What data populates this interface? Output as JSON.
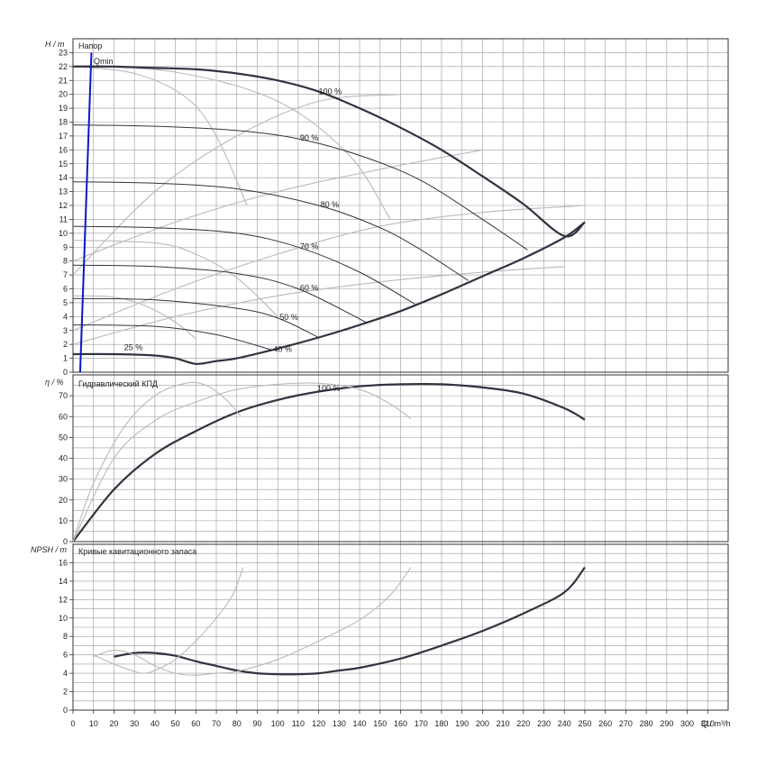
{
  "chart_data": [
    {
      "type": "line",
      "panel": "head",
      "title": "Напор",
      "ylabel": "H / m",
      "xlabel": "Q / m³/h",
      "xlim": [
        0,
        320
      ],
      "ylim": [
        0,
        24
      ],
      "yticks": [
        0,
        1,
        2,
        3,
        4,
        5,
        6,
        7,
        8,
        9,
        10,
        11,
        12,
        13,
        14,
        15,
        16,
        17,
        18,
        19,
        20,
        21,
        22,
        23
      ],
      "grid": true,
      "qmin_label": "Qmin",
      "qmin_line": {
        "x": [
          3.5,
          9
        ],
        "y": [
          0,
          23
        ]
      },
      "max_curve": {
        "name": "100 %",
        "x": [
          0,
          20,
          40,
          60,
          80,
          100,
          120,
          140,
          160,
          180,
          200,
          220,
          240,
          250
        ],
        "y": [
          22.0,
          22.0,
          21.9,
          21.8,
          21.5,
          21.0,
          20.2,
          19.0,
          17.6,
          16.0,
          14.1,
          12.1,
          9.8,
          10.8
        ]
      },
      "min_curve": {
        "name": "25 %",
        "x": [
          0,
          20,
          40,
          50,
          60,
          70,
          80,
          100,
          120,
          140,
          160,
          180,
          200,
          220,
          240,
          250
        ],
        "y": [
          1.3,
          1.3,
          1.2,
          1.0,
          0.6,
          0.8,
          1.0,
          1.7,
          2.5,
          3.4,
          4.4,
          5.6,
          6.9,
          8.2,
          9.7,
          10.8
        ]
      },
      "speed_curves": [
        {
          "name": "90 %",
          "x": [
            0,
            40,
            80,
            110,
            140,
            170,
            200,
            222
          ],
          "y": [
            17.8,
            17.7,
            17.4,
            16.8,
            15.6,
            13.8,
            11.0,
            8.8
          ]
        },
        {
          "name": "80 %",
          "x": [
            0,
            40,
            80,
            120,
            150,
            170,
            193
          ],
          "y": [
            13.7,
            13.6,
            13.2,
            12.0,
            10.4,
            8.8,
            6.6
          ]
        },
        {
          "name": "70 %",
          "x": [
            0,
            40,
            80,
            110,
            140,
            167
          ],
          "y": [
            10.5,
            10.4,
            10.0,
            9.0,
            7.2,
            4.9
          ]
        },
        {
          "name": "60 %",
          "x": [
            0,
            40,
            80,
            110,
            143
          ],
          "y": [
            7.7,
            7.6,
            7.1,
            6.0,
            3.6
          ]
        },
        {
          "name": "50 %",
          "x": [
            0,
            40,
            80,
            100,
            120
          ],
          "y": [
            5.3,
            5.2,
            4.6,
            3.9,
            2.5
          ]
        },
        {
          "name": "40 %",
          "x": [
            0,
            40,
            70,
            97
          ],
          "y": [
            3.4,
            3.3,
            2.7,
            1.6
          ]
        }
      ],
      "background_curves": [
        {
          "x": [
            0,
            30,
            55,
            70,
            85
          ],
          "y": [
            22.0,
            21.5,
            19.8,
            17.0,
            12.0
          ]
        },
        {
          "x": [
            0,
            50,
            100,
            135,
            155
          ],
          "y": [
            22.0,
            21.6,
            19.5,
            15.6,
            11.0
          ]
        },
        {
          "x": [
            0,
            40,
            60,
            80,
            100
          ],
          "y": [
            9.5,
            9.3,
            8.5,
            6.8,
            4.0
          ]
        },
        {
          "x": [
            0,
            20,
            35,
            50,
            60
          ],
          "y": [
            5.5,
            5.4,
            4.8,
            3.6,
            2.4
          ]
        },
        {
          "x": [
            0,
            50,
            100,
            150,
            200,
            250
          ],
          "y": [
            3.0,
            6.0,
            8.5,
            10.5,
            11.5,
            12.0
          ]
        },
        {
          "x": [
            0,
            50,
            100,
            150,
            200,
            240
          ],
          "y": [
            2.0,
            4.0,
            5.5,
            6.5,
            7.2,
            7.6
          ]
        },
        {
          "x": [
            0,
            50,
            100,
            150,
            200
          ],
          "y": [
            8.0,
            10.8,
            13.0,
            14.6,
            16.0
          ]
        },
        {
          "x": [
            0,
            40,
            80,
            120,
            160
          ],
          "y": [
            7.0,
            13.0,
            17.0,
            19.5,
            20.0
          ]
        }
      ]
    },
    {
      "type": "line",
      "panel": "efficiency",
      "title": "Гидравлический КПД",
      "ylabel": "η / %",
      "xlim": [
        0,
        320
      ],
      "ylim": [
        0,
        80
      ],
      "yticks": [
        0,
        10,
        20,
        30,
        40,
        50,
        60,
        70
      ],
      "grid": true,
      "series": [
        {
          "name": "100 %",
          "x": [
            0,
            20,
            40,
            60,
            80,
            100,
            120,
            140,
            160,
            180,
            200,
            220,
            240,
            250
          ],
          "y": [
            0,
            25,
            42,
            53,
            62,
            68,
            72,
            74.5,
            75.5,
            75.5,
            74,
            71,
            64,
            58.5
          ]
        },
        {
          "x": [
            0,
            20,
            40,
            60,
            80,
            100,
            120,
            140,
            155,
            165
          ],
          "y": [
            0,
            40,
            58,
            67,
            73,
            75.5,
            76,
            73,
            66,
            59
          ]
        },
        {
          "x": [
            0,
            10,
            25,
            40,
            55,
            65,
            75,
            82
          ],
          "y": [
            0,
            28,
            55,
            70,
            76,
            75,
            68,
            60
          ]
        }
      ]
    },
    {
      "type": "line",
      "panel": "npsh",
      "title": "Кривые кавитационного запаса",
      "ylabel": "NPSH / m",
      "xlim": [
        0,
        320
      ],
      "ylim": [
        0,
        18
      ],
      "yticks": [
        0,
        2,
        4,
        6,
        8,
        10,
        12,
        14,
        16
      ],
      "xticks": [
        0,
        10,
        20,
        30,
        40,
        50,
        60,
        70,
        80,
        90,
        100,
        110,
        120,
        130,
        140,
        150,
        160,
        170,
        180,
        190,
        200,
        210,
        220,
        230,
        240,
        250,
        260,
        270,
        280,
        290,
        300,
        310
      ],
      "grid": true,
      "series": [
        {
          "x": [
            20,
            30,
            40,
            50,
            60,
            70,
            80,
            90,
            100,
            110,
            120,
            130,
            140,
            160,
            180,
            200,
            220,
            240,
            250
          ],
          "y": [
            5.8,
            6.2,
            6.2,
            5.9,
            5.3,
            4.8,
            4.3,
            4.0,
            3.9,
            3.9,
            4.0,
            4.3,
            4.6,
            5.6,
            7.0,
            8.6,
            10.5,
            12.8,
            15.5
          ]
        },
        {
          "x": [
            10,
            20,
            30,
            40,
            50,
            60,
            70,
            80,
            100,
            120,
            140,
            155,
            165
          ],
          "y": [
            5.8,
            6.5,
            6.0,
            4.8,
            4.0,
            3.8,
            4.0,
            4.2,
            5.5,
            7.5,
            9.8,
            12.5,
            15.5
          ]
        },
        {
          "x": [
            10,
            20,
            30,
            35,
            40,
            50,
            60,
            70,
            78,
            83
          ],
          "y": [
            6.0,
            5.0,
            4.2,
            4.0,
            4.3,
            5.5,
            7.5,
            10.0,
            12.5,
            15.5
          ]
        }
      ]
    }
  ],
  "xaxis": {
    "label": "Q / m³/h"
  },
  "labels": {
    "head_title": "Напор",
    "eff_title": "Гидравлический КПД",
    "npsh_title": "Кривые кавитационного запаса",
    "head_ylabel": "H / m",
    "eff_ylabel": "η / %",
    "npsh_ylabel": "NPSH / m",
    "qmin": "Qmin",
    "eff_100": "100 %"
  },
  "colors": {
    "grid": "#9a9a9a",
    "curve_dark": "#2f3540",
    "curve_gray": "#b9b9b9",
    "qmin": "#0a18c8"
  }
}
